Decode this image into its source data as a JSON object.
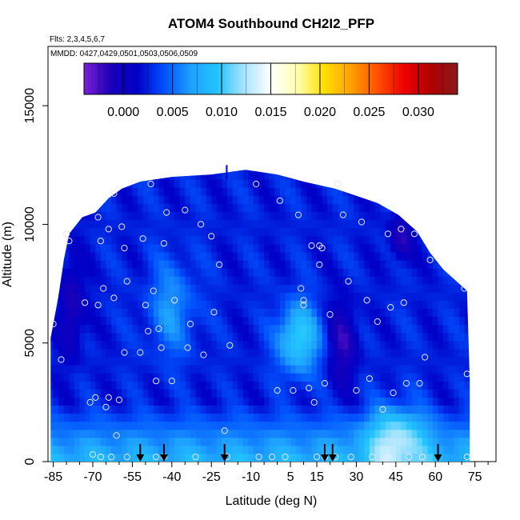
{
  "chart_data": {
    "type": "heatmap",
    "title": "ATOM4 Southbound CH2I2_PFP",
    "flights_note": "Flts: 2,3,4,5,6,7",
    "dates_note": "MMDD: 0427,0429,0501,0503,0506,0509",
    "xlabel": "Latitude (deg N)",
    "ylabel": "Altitude (m)",
    "xlim": [
      -87,
      83
    ],
    "ylim": [
      0,
      17500
    ],
    "x_ticks": [
      -85,
      -70,
      -55,
      -40,
      -25,
      -10,
      5,
      15,
      30,
      45,
      60,
      75
    ],
    "x_tick_labels": [
      "-85",
      "-70",
      "-55",
      "-40",
      "-25",
      "-10",
      "5",
      "15",
      "30",
      "45",
      "60",
      "75"
    ],
    "y_ticks": [
      0,
      5000,
      10000,
      15000
    ],
    "y_tick_labels": [
      "0",
      "5000",
      "10000",
      "15000"
    ],
    "colorbar": {
      "range": [
        -0.004,
        0.034
      ],
      "tick_values": [
        0.0,
        0.005,
        0.01,
        0.015,
        0.02,
        0.025,
        0.03
      ],
      "tick_labels": [
        "0.000",
        "0.005",
        "0.010",
        "0.015",
        "0.020",
        "0.025",
        "0.030"
      ],
      "colors": [
        "#7b1fd6",
        "#1a00b8",
        "#0000c8",
        "#0050ff",
        "#1ea0ff",
        "#22c4ff",
        "#a8e4ff",
        "#ffffff",
        "#ffffb0",
        "#ffe000",
        "#ffa000",
        "#ff5000",
        "#ee0000",
        "#b00000",
        "#8b1a1a"
      ]
    },
    "profile_lat_arrows": [
      -52,
      -43,
      -20,
      18,
      21,
      61
    ],
    "samples": [
      [
        -85,
        5800
      ],
      [
        -82,
        4300
      ],
      [
        -80,
        9600
      ],
      [
        -79,
        9300
      ],
      [
        -73,
        6700
      ],
      [
        -71,
        2500
      ],
      [
        -70,
        300
      ],
      [
        -69,
        2700
      ],
      [
        -68,
        10300
      ],
      [
        -68,
        6600
      ],
      [
        -67,
        9300
      ],
      [
        -67,
        200
      ],
      [
        -66,
        7300
      ],
      [
        -65,
        2300
      ],
      [
        -64,
        9800
      ],
      [
        -64,
        2700
      ],
      [
        -63,
        200
      ],
      [
        -62,
        11300
      ],
      [
        -62,
        6900
      ],
      [
        -61,
        1100
      ],
      [
        -60,
        2600
      ],
      [
        -59,
        9900
      ],
      [
        -58,
        9000
      ],
      [
        -58,
        4600
      ],
      [
        -57,
        7600
      ],
      [
        -57,
        200
      ],
      [
        -52,
        4600
      ],
      [
        -51,
        9400
      ],
      [
        -50,
        6600
      ],
      [
        -49,
        5500
      ],
      [
        -48,
        11700
      ],
      [
        -47,
        7200
      ],
      [
        -46,
        3400
      ],
      [
        -46,
        200
      ],
      [
        -45,
        5600
      ],
      [
        -44,
        4800
      ],
      [
        -43,
        9200
      ],
      [
        -43,
        200
      ],
      [
        -42,
        10500
      ],
      [
        -40,
        3400
      ],
      [
        -39,
        6800
      ],
      [
        -35,
        10600
      ],
      [
        -34,
        4800
      ],
      [
        -33,
        5800
      ],
      [
        -31,
        200
      ],
      [
        -29,
        10000
      ],
      [
        -28,
        4500
      ],
      [
        -25,
        9500
      ],
      [
        -24,
        6300
      ],
      [
        -22,
        8300
      ],
      [
        -20,
        1300
      ],
      [
        -19,
        200
      ],
      [
        -18,
        4900
      ],
      [
        -8,
        11700
      ],
      [
        -7,
        200
      ],
      [
        -2,
        200
      ],
      [
        0,
        3000
      ],
      [
        1,
        11000
      ],
      [
        3,
        200
      ],
      [
        6,
        3000
      ],
      [
        8,
        10400
      ],
      [
        9,
        7300
      ],
      [
        10,
        6600
      ],
      [
        10,
        6800
      ],
      [
        12,
        3100
      ],
      [
        13,
        9100
      ],
      [
        14,
        2500
      ],
      [
        15,
        200
      ],
      [
        16,
        9100
      ],
      [
        16,
        8300
      ],
      [
        17,
        9000
      ],
      [
        18,
        3300
      ],
      [
        18,
        200
      ],
      [
        20,
        6200
      ],
      [
        22,
        200
      ],
      [
        23,
        11700
      ],
      [
        25,
        10400
      ],
      [
        27,
        7600
      ],
      [
        28,
        200
      ],
      [
        30,
        3000
      ],
      [
        32,
        10100
      ],
      [
        34,
        6800
      ],
      [
        35,
        3500
      ],
      [
        36,
        200
      ],
      [
        38,
        5900
      ],
      [
        40,
        2200
      ],
      [
        42,
        9600
      ],
      [
        42,
        200
      ],
      [
        43,
        6500
      ],
      [
        44,
        2900
      ],
      [
        47,
        9800
      ],
      [
        48,
        6700
      ],
      [
        49,
        3300
      ],
      [
        50,
        200
      ],
      [
        52,
        9600
      ],
      [
        54,
        3300
      ],
      [
        55,
        200
      ],
      [
        56,
        4400
      ],
      [
        58,
        8500
      ],
      [
        71,
        7300
      ],
      [
        72,
        3700
      ],
      [
        72,
        200
      ]
    ]
  }
}
